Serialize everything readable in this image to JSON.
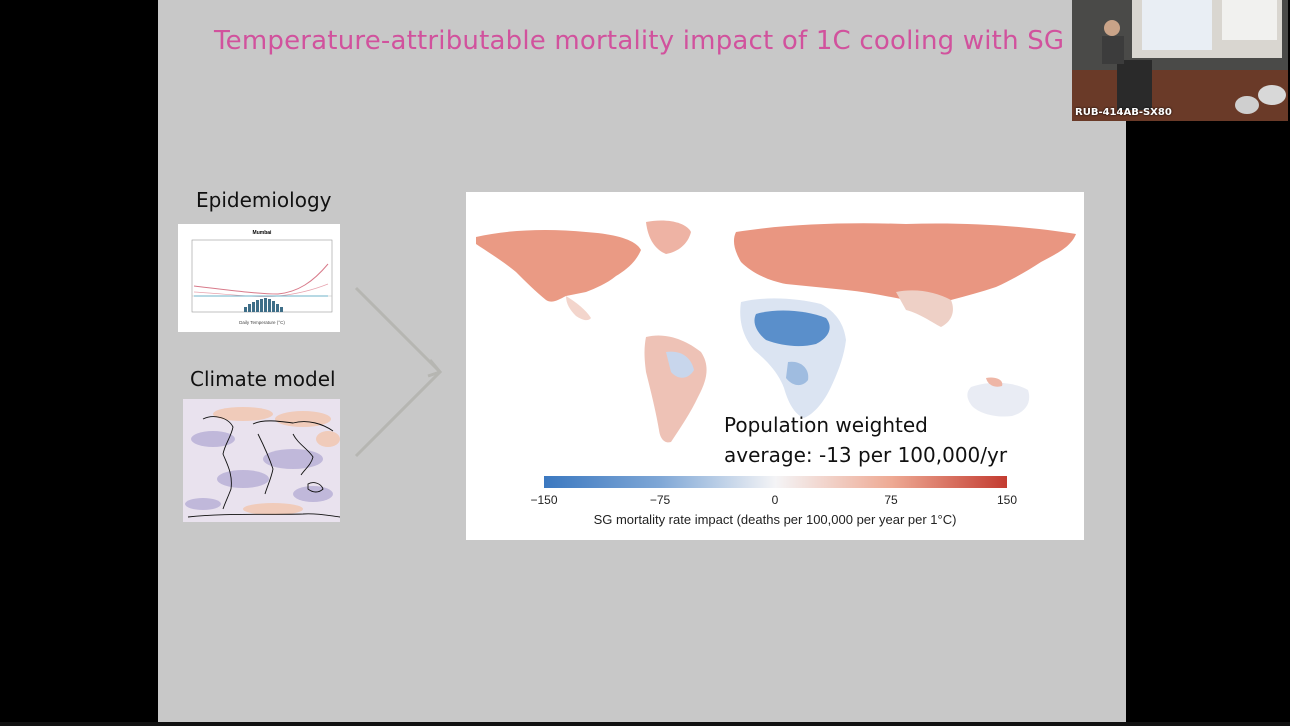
{
  "slide": {
    "title": "Temperature-attributable mortality impact of  1C cooling with SG",
    "epidemiology_label": "Epidemiology",
    "climate_model_label": "Climate model",
    "epi_chart_title": "Mumbai",
    "epi_chart_xlabel": "Daily Temperature (°C)",
    "population_text_line1": "Population weighted",
    "population_text_line2": "average: -13 per 100,000/yr"
  },
  "legend": {
    "ticks": [
      "−150",
      "−75",
      "0",
      "75",
      "150"
    ],
    "title": "SG mortality rate impact (deaths per 100,000 per year per 1°C)",
    "color_low": "#3b78c0",
    "color_mid": "#f4f4f6",
    "color_high": "#c33b30"
  },
  "webcam": {
    "label": "RUB-414AB-SX80"
  },
  "colors": {
    "title": "#d1529d",
    "slide_bg": "#c8c8c8",
    "frame_bg": "#000000"
  }
}
